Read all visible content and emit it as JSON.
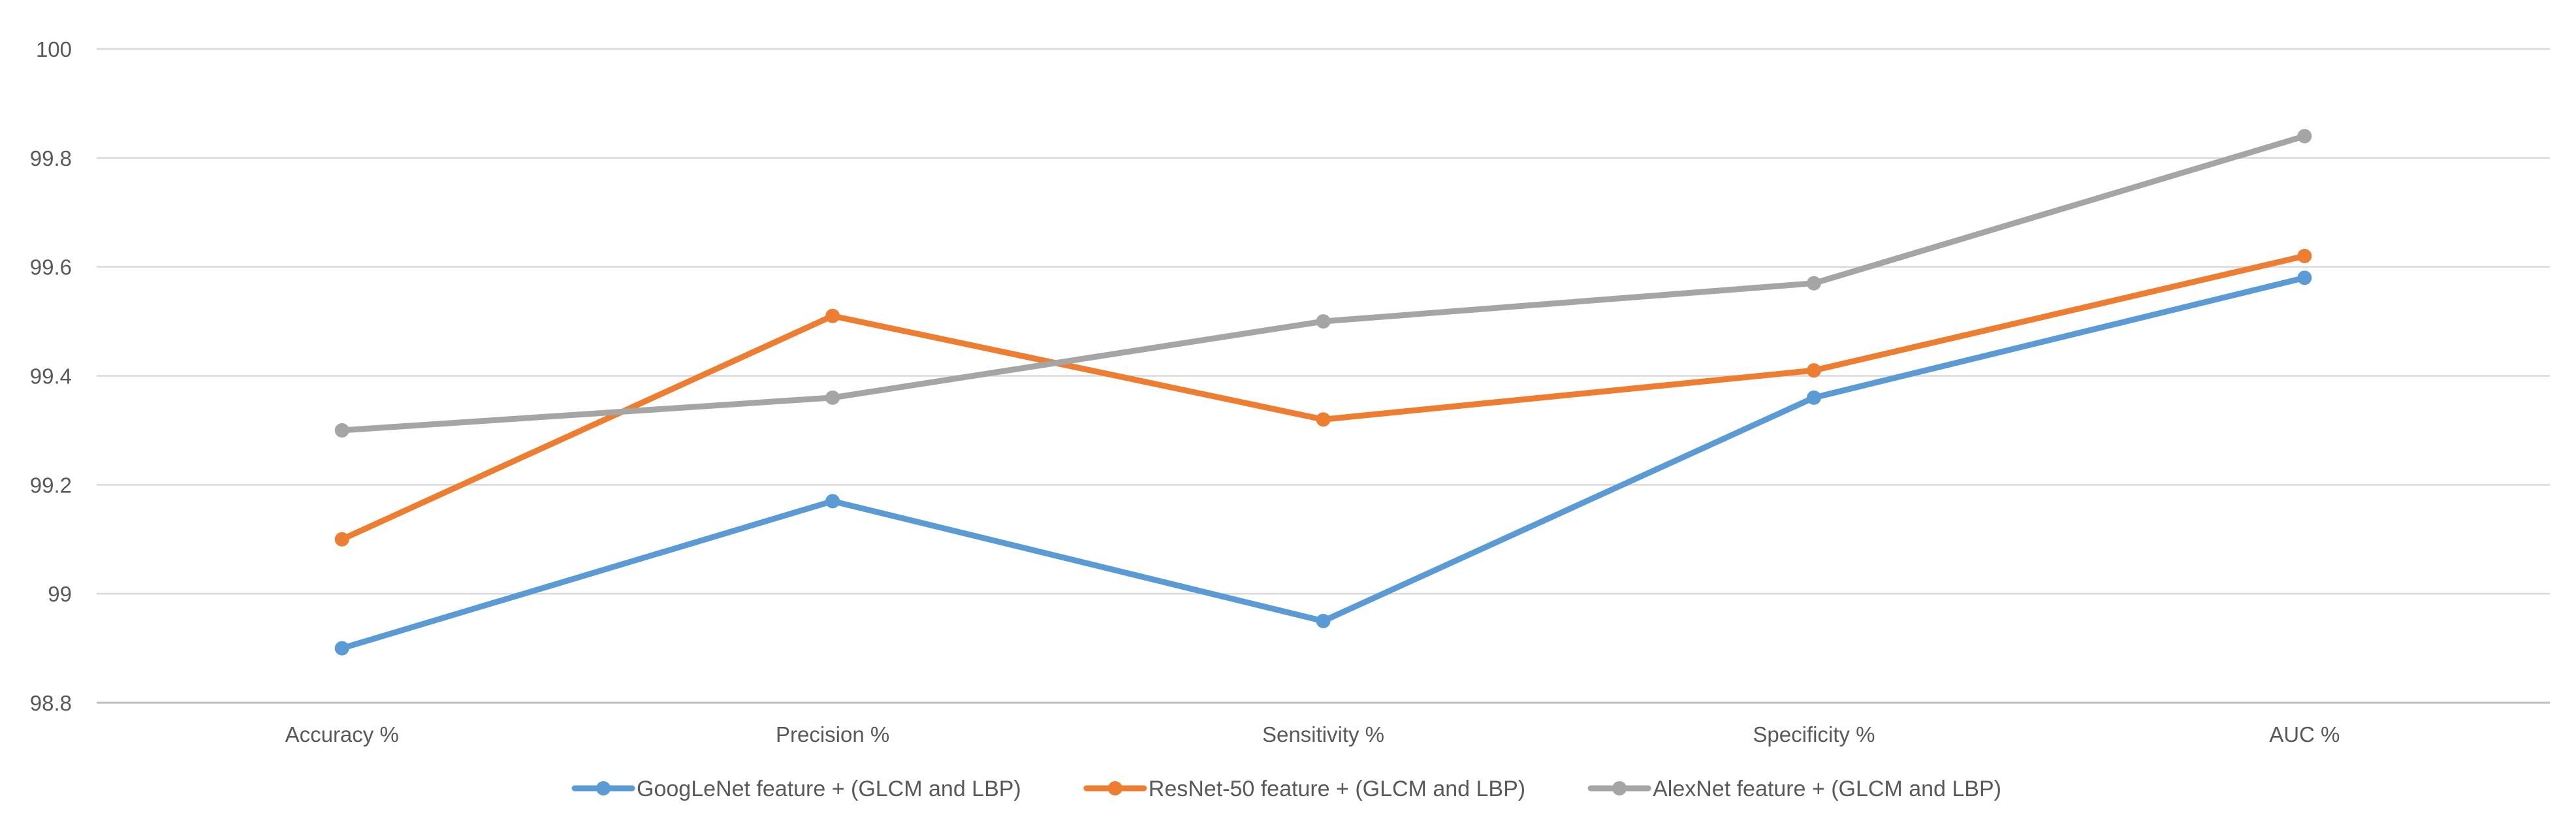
{
  "chart_data": {
    "type": "line",
    "title": "",
    "xlabel": "",
    "ylabel": "",
    "categories": [
      "Accuracy %",
      "Precision %",
      "Sensitivity %",
      "Specificity %",
      "AUC %"
    ],
    "ylim": [
      98.8,
      100
    ],
    "yticks": [
      98.8,
      99,
      99.2,
      99.4,
      99.6,
      99.8,
      100
    ],
    "grid": "horizontal",
    "legend_position": "bottom",
    "series": [
      {
        "name": "GoogLeNet feature + (GLCM and LBP)",
        "color": "#5b9bd5",
        "values": [
          98.9,
          99.17,
          98.95,
          99.36,
          99.58
        ]
      },
      {
        "name": "ResNet-50 feature + (GLCM and LBP)",
        "color": "#ed7d31",
        "values": [
          99.1,
          99.51,
          99.32,
          99.41,
          99.62
        ]
      },
      {
        "name": "AlexNet feature + (GLCM and LBP)",
        "color": "#a5a5a5",
        "values": [
          99.3,
          99.36,
          99.5,
          99.57,
          99.84
        ]
      }
    ]
  }
}
